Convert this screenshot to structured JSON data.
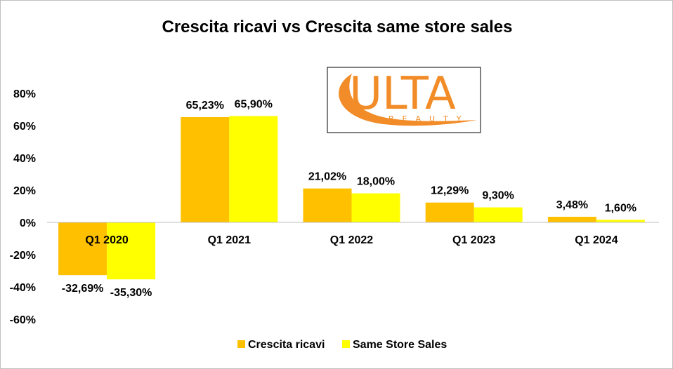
{
  "chart_data": {
    "type": "bar",
    "title": "Crescita ricavi vs Crescita same store sales",
    "categories": [
      "Q1 2020",
      "Q1 2021",
      "Q1 2022",
      "Q1 2023",
      "Q1 2024"
    ],
    "series": [
      {
        "name": "Crescita ricavi",
        "color": "#ffc000",
        "values": [
          -32.69,
          65.23,
          21.02,
          12.29,
          3.48
        ],
        "labels": [
          "-32,69%",
          "65,23%",
          "21,02%",
          "12,29%",
          "3,48%"
        ]
      },
      {
        "name": "Same Store Sales",
        "color": "#ffff00",
        "values": [
          -35.3,
          65.9,
          18.0,
          9.3,
          1.6
        ],
        "labels": [
          "-35,30%",
          "65,90%",
          "18,00%",
          "9,30%",
          "1,60%"
        ]
      }
    ],
    "ylim": [
      -60,
      80
    ],
    "yticks": [
      80,
      60,
      40,
      20,
      0,
      -20,
      -40,
      -60
    ],
    "ytick_labels": [
      "80%",
      "60%",
      "40%",
      "20%",
      "0%",
      "-20%",
      "-40%",
      "-60%"
    ],
    "grid": false,
    "legend_position": "bottom",
    "xlabel": "",
    "ylabel": ""
  },
  "logo": {
    "main_text": "ULTA",
    "sub_text": "BEAUTY",
    "color": "#f28c28"
  }
}
